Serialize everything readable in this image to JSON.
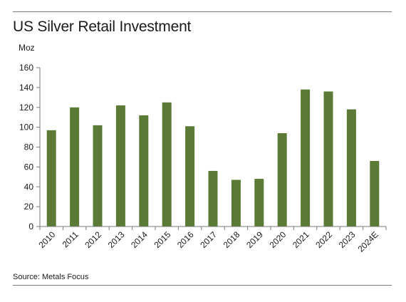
{
  "header": {
    "title": "US Silver Retail Investment",
    "unit": "Moz"
  },
  "footer": {
    "source": "Source: Metals Focus"
  },
  "colors": {
    "bar": "#5a7a35",
    "axis": "#7a7a7a",
    "rule": "#7a7a7a"
  },
  "chart_data": {
    "type": "bar",
    "title": "US Silver Retail Investment",
    "ylabel": "Moz",
    "xlabel": "",
    "categories": [
      "2010",
      "2011",
      "2012",
      "2013",
      "2014",
      "2015",
      "2016",
      "2017",
      "2018",
      "2019",
      "2020",
      "2021",
      "2022",
      "2023",
      "2024E"
    ],
    "values": [
      97,
      120,
      102,
      122,
      112,
      125,
      101,
      56,
      47,
      48,
      94,
      138,
      136,
      118,
      66
    ],
    "ylim": [
      0,
      160
    ],
    "yticks": [
      0,
      20,
      40,
      60,
      80,
      100,
      120,
      140,
      160
    ],
    "grid": false,
    "legend": "none"
  }
}
